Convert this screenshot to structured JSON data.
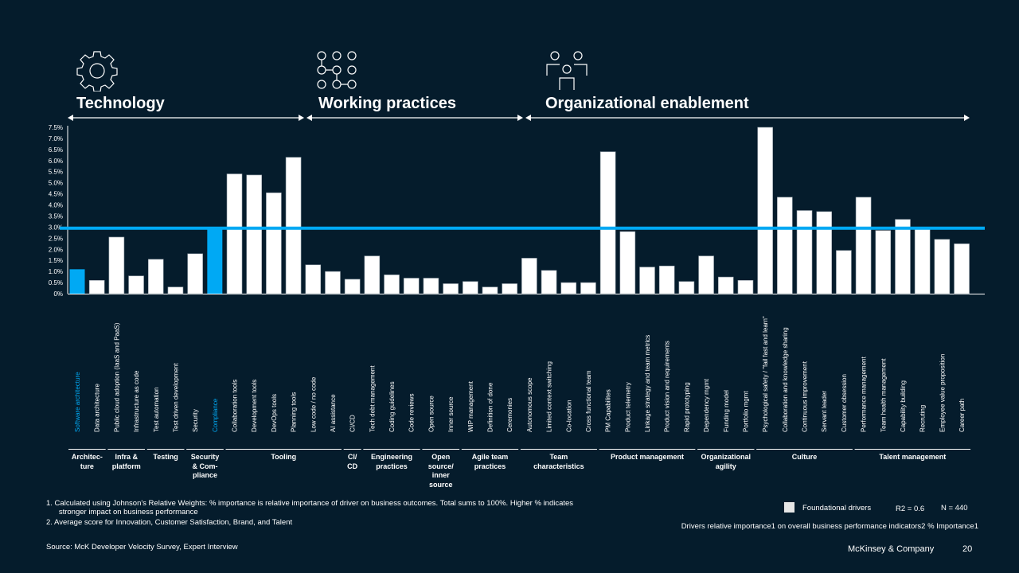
{
  "pillars": [
    {
      "title": "Technology",
      "icon": "gear-icon"
    },
    {
      "title": "Working practices",
      "icon": "process-nodes-icon"
    },
    {
      "title": "Organizational enablement",
      "icon": "people-icon"
    }
  ],
  "colors": {
    "background": "#051c2c",
    "bar": "#ffffff",
    "highlight": "#00a9f4",
    "average_line": "#00a9f4"
  },
  "chart_data": {
    "type": "bar",
    "title": "Drivers relative importance1 on overall business performance indicators2 % Importance1",
    "ylabel": "% Importance",
    "ylim": [
      0,
      7.5
    ],
    "yticks": [
      "0%",
      "0.5%",
      "1.0%",
      "1.5%",
      "2.0%",
      "2.5%",
      "3.0%",
      "3.5%",
      "4.0%",
      "4.5%",
      "5.0%",
      "5.5%",
      "6.0%",
      "6.5%",
      "7.0%",
      "7.5%"
    ],
    "average_line": 2.95,
    "highlighted": [
      "Software architecture",
      "Compliance"
    ],
    "categories": [
      "Software architecture",
      "Data architecture",
      "Public cloud adoption (IaaS and PaaS)",
      "Infrastructure as code",
      "Test automation",
      "Test driven development",
      "Security",
      "Compliance",
      "Collaboration tools",
      "Development tools",
      "DevOps tools",
      "Planning tools",
      "Low code / no code",
      "AI assistance",
      "CI/CD",
      "Tech debt management",
      "Coding guidelines",
      "Code reviews",
      "Open source",
      "Inner source",
      "WIP management",
      "Definition of done",
      "Ceremonies",
      "Autonomous scope",
      "Limited context switching",
      "Co-location",
      "Cross functional team",
      "PM Capabilites",
      "Product telemetry",
      "Linkage strategy and team metrics",
      "Product vision and requirements",
      "Rapid prototyping",
      "Dependency mgmt",
      "Funding model",
      "Portfolio mgmt",
      "Psychological safety / \"fail fast and learn\"",
      "Collaboration and knowledge sharing",
      "Continuous improvement",
      "Servant leader",
      "Customer obsession",
      "Performance management",
      "Team health management",
      "Capability building",
      "Recruting",
      "Employee value proposition",
      "Career path"
    ],
    "values": [
      1.1,
      0.6,
      2.55,
      0.8,
      1.55,
      0.3,
      1.8,
      2.9,
      5.4,
      5.35,
      4.55,
      6.15,
      1.3,
      1.0,
      0.65,
      1.7,
      0.85,
      0.7,
      0.7,
      0.45,
      0.55,
      0.3,
      0.45,
      1.6,
      1.05,
      0.5,
      0.5,
      6.4,
      2.8,
      1.2,
      1.25,
      0.55,
      1.7,
      0.75,
      0.6,
      7.5,
      4.35,
      3.75,
      3.7,
      1.95,
      4.35,
      2.85,
      3.35,
      2.9,
      2.45,
      2.25
    ],
    "groups": [
      {
        "label": "Architec-\nture",
        "from": 0,
        "to": 1
      },
      {
        "label": "Infra &\nplatform",
        "from": 2,
        "to": 3
      },
      {
        "label": "Testing",
        "from": 4,
        "to": 5
      },
      {
        "label": "Security\n& Com-\npliance",
        "from": 6,
        "to": 7
      },
      {
        "label": "Tooling",
        "from": 8,
        "to": 13
      },
      {
        "label": "CI/\nCD",
        "from": 14,
        "to": 14
      },
      {
        "label": "Engineering\npractices",
        "from": 15,
        "to": 17
      },
      {
        "label": "Open\nsource/\ninner\nsource",
        "from": 18,
        "to": 19
      },
      {
        "label": "Agile team\npractices",
        "from": 20,
        "to": 22
      },
      {
        "label": "Team\ncharacteristics",
        "from": 23,
        "to": 26
      },
      {
        "label": "Product management",
        "from": 27,
        "to": 31
      },
      {
        "label": "Organizational\nagility",
        "from": 32,
        "to": 34
      },
      {
        "label": "Culture",
        "from": 35,
        "to": 39
      },
      {
        "label": "Talent management",
        "from": 40,
        "to": 45
      }
    ],
    "legend": {
      "label": "Foundational drivers",
      "r2": "R2 = 0.6",
      "n": "N = 440"
    }
  },
  "footnotes": [
    "1. Calculated using Johnson's Relative Weights: % importance is relative importance of driver on business outcomes. Total sums to 100%. Higher % indicates\n      stronger impact on business performance",
    "2. Average score for Innovation, Customer Satisfaction, Brand, and Talent"
  ],
  "source": "Source: McK Developer Velocity Survey, Expert Interview",
  "brand": "McKinsey & Company",
  "page_number": "20"
}
